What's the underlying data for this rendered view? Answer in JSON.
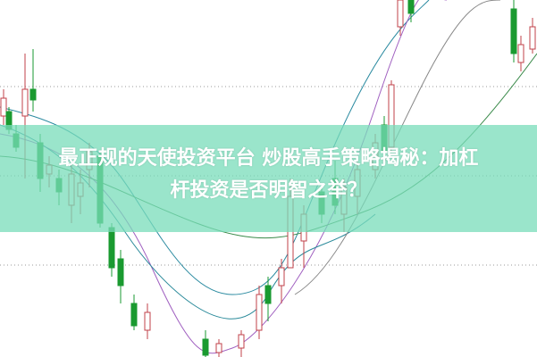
{
  "title": {
    "line1": "最正规的天使投资平台 炒股高手策略揭秘：加杠",
    "line2": "杆投资是否明智之举？"
  },
  "colors": {
    "up": "#c0404a",
    "down": "#1a9a30",
    "band": "#8fe0c4",
    "ma_short": "#2a8aa0",
    "ma_mid": "#a060c0",
    "ma_long": "#3a8a4a"
  }
}
